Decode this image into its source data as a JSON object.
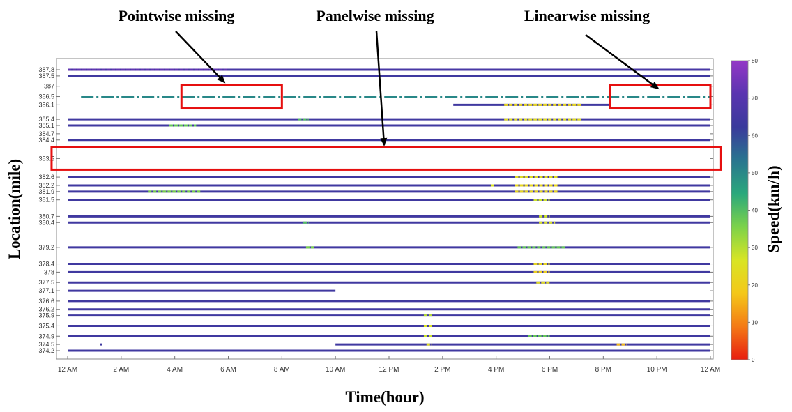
{
  "chart_data": {
    "type": "heatmap",
    "xlabel": "Time(hour)",
    "ylabel": "Location(mile)",
    "colorbar_label": "Speed(km/h)",
    "x_ticks": [
      "12 AM",
      "2 AM",
      "4 AM",
      "6 AM",
      "8 AM",
      "10 AM",
      "12 PM",
      "2 PM",
      "4 PM",
      "6 PM",
      "8 PM",
      "10 PM",
      "12 AM"
    ],
    "x_range_hours": [
      0,
      24
    ],
    "y_ticks": [
      "387.8",
      "387.5",
      "387",
      "386.5",
      "386.1",
      "385.4",
      "385.1",
      "384.7",
      "384.4",
      "383.5",
      "382.6",
      "382.2",
      "381.9",
      "381.5",
      "380.7",
      "380.4",
      "379.2",
      "378.4",
      "378",
      "377.5",
      "377.1",
      "376.6",
      "376.2",
      "375.9",
      "375.4",
      "374.9",
      "374.5",
      "374.2"
    ],
    "colorbar_ticks": [
      "0",
      "10",
      "20",
      "30",
      "40",
      "50",
      "60",
      "70",
      "80"
    ],
    "color_range": [
      0,
      80
    ],
    "colormap": [
      "#e81e10",
      "#f47a16",
      "#f4c81a",
      "#d8e524",
      "#7cd24a",
      "#2aa87c",
      "#29758f",
      "#3a3a9c",
      "#5a35b0",
      "#9438c6"
    ],
    "annotations": [
      {
        "text": "Pointwise missing",
        "target_location": "386.5",
        "target_time_hours": [
          4.25,
          8.0
        ]
      },
      {
        "text": "Panelwise missing",
        "target_location": "383.5",
        "target_time_hours": [
          -0.6,
          24.4
        ]
      },
      {
        "text": "Linearwise missing",
        "target_location": "386.5",
        "target_time_hours": [
          20.25,
          24.0
        ]
      }
    ],
    "rows": [
      {
        "location": "387.8",
        "base": 66,
        "segments": [
          [
            0,
            24
          ]
        ],
        "slow": [
          [
            0,
            6,
            72
          ]
        ]
      },
      {
        "location": "387.5",
        "base": 64,
        "segments": [
          [
            0,
            24
          ]
        ],
        "slow": []
      },
      {
        "location": "387",
        "base": 65,
        "segments": [],
        "slow": []
      },
      {
        "location": "386.5",
        "base": 50,
        "pattern": "dashed",
        "segments": [
          [
            0.5,
            24
          ]
        ],
        "slow": []
      },
      {
        "location": "386.1",
        "base": 64,
        "segments": [
          [
            14.4,
            20.3
          ]
        ],
        "slow": [
          [
            16.3,
            19.2,
            22
          ]
        ]
      },
      {
        "location": "385.4",
        "base": 64,
        "segments": [
          [
            0,
            24
          ]
        ],
        "slow": [
          [
            16.3,
            19.2,
            24
          ],
          [
            8.6,
            9.0,
            40
          ]
        ]
      },
      {
        "location": "385.1",
        "base": 64,
        "segments": [
          [
            0,
            24
          ]
        ],
        "slow": [
          [
            3.8,
            4.8,
            38
          ]
        ]
      },
      {
        "location": "384.7",
        "base": 64,
        "segments": [],
        "slow": []
      },
      {
        "location": "384.4",
        "base": 64,
        "segments": [
          [
            0,
            24
          ]
        ],
        "slow": []
      },
      {
        "location": "383.5",
        "base": 64,
        "segments": [],
        "slow": []
      },
      {
        "location": "382.6",
        "base": 64,
        "segments": [
          [
            0,
            24
          ]
        ],
        "slow": [
          [
            16.7,
            18.3,
            24
          ]
        ]
      },
      {
        "location": "382.2",
        "base": 64,
        "segments": [
          [
            0,
            24
          ]
        ],
        "slow": [
          [
            15.8,
            16.0,
            26
          ],
          [
            16.7,
            18.3,
            22
          ]
        ]
      },
      {
        "location": "381.9",
        "base": 64,
        "segments": [
          [
            0,
            24
          ]
        ],
        "slow": [
          [
            3.0,
            5.0,
            36
          ],
          [
            16.7,
            18.3,
            22
          ]
        ]
      },
      {
        "location": "381.5",
        "base": 64,
        "segments": [
          [
            0,
            24
          ]
        ],
        "slow": [
          [
            17.4,
            18.0,
            28
          ]
        ]
      },
      {
        "location": "380.7",
        "base": 64,
        "segments": [
          [
            0,
            24
          ]
        ],
        "slow": [
          [
            17.6,
            18.0,
            28
          ]
        ]
      },
      {
        "location": "380.4",
        "base": 64,
        "segments": [
          [
            0,
            24
          ]
        ],
        "slow": [
          [
            17.6,
            18.2,
            26
          ],
          [
            8.8,
            9.0,
            40
          ]
        ]
      },
      {
        "location": "379.2",
        "base": 64,
        "segments": [
          [
            0,
            24
          ]
        ],
        "slow": [
          [
            8.9,
            9.2,
            36
          ],
          [
            16.8,
            18.6,
            38
          ]
        ]
      },
      {
        "location": "378.4",
        "base": 64,
        "segments": [
          [
            0,
            24
          ]
        ],
        "slow": [
          [
            17.4,
            18.0,
            22
          ]
        ]
      },
      {
        "location": "378",
        "base": 64,
        "segments": [
          [
            0,
            24
          ]
        ],
        "slow": [
          [
            17.4,
            18.0,
            20
          ]
        ]
      },
      {
        "location": "377.5",
        "base": 64,
        "segments": [
          [
            0,
            24
          ]
        ],
        "slow": [
          [
            17.5,
            18.0,
            24
          ]
        ]
      },
      {
        "location": "377.1",
        "base": 64,
        "segments": [
          [
            0,
            10.0
          ]
        ],
        "slow": []
      },
      {
        "location": "376.6",
        "base": 64,
        "segments": [
          [
            0,
            24
          ]
        ],
        "slow": []
      },
      {
        "location": "376.2",
        "base": 64,
        "segments": [
          [
            0,
            24
          ]
        ],
        "slow": []
      },
      {
        "location": "375.9",
        "base": 64,
        "segments": [
          [
            0,
            24
          ]
        ],
        "slow": [
          [
            13.3,
            13.6,
            30
          ]
        ]
      },
      {
        "location": "375.4",
        "base": 64,
        "segments": [
          [
            0,
            24
          ]
        ],
        "slow": [
          [
            13.3,
            13.6,
            26
          ]
        ]
      },
      {
        "location": "374.9",
        "base": 64,
        "segments": [
          [
            0,
            24
          ]
        ],
        "slow": [
          [
            13.3,
            13.6,
            28
          ],
          [
            17.2,
            18.0,
            38
          ]
        ]
      },
      {
        "location": "374.5",
        "base": 64,
        "segments": [
          [
            1.2,
            1.3
          ],
          [
            10.0,
            24
          ]
        ],
        "slow": [
          [
            13.4,
            13.6,
            24
          ],
          [
            20.5,
            20.9,
            16
          ]
        ]
      },
      {
        "location": "374.2",
        "base": 64,
        "segments": [
          [
            0,
            24
          ]
        ],
        "slow": []
      }
    ]
  }
}
